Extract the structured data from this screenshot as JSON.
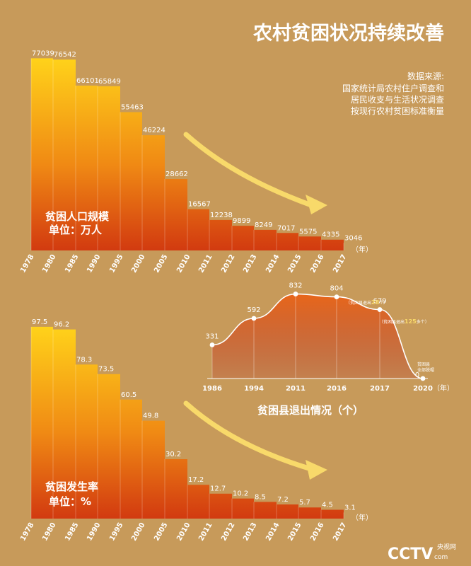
{
  "title": "农村贫困状况持续改善",
  "source": {
    "heading": "数据来源:",
    "lines": [
      "国家统计局农村住户调查和",
      "居民收支与生活状况调查",
      "按现行农村贫困标准衡量"
    ]
  },
  "colors": {
    "background": "#c79a5a",
    "top": "#ffd21a",
    "bottom": "#d23a10",
    "arrow": "#f8d96a"
  },
  "chart_data": [
    {
      "type": "area",
      "title": "贫困人口规模",
      "unit_label": "单位：万人",
      "axis_unit": "（年）",
      "categories": [
        "1978",
        "1980",
        "1985",
        "1990",
        "1995",
        "2000",
        "2005",
        "2010",
        "2011",
        "2012",
        "2013",
        "2014",
        "2015",
        "2016",
        "2017"
      ],
      "values": [
        77039,
        76542,
        66101,
        65849,
        55463,
        46224,
        28662,
        16567,
        12238,
        9899,
        8249,
        7017,
        5575,
        4335,
        3046
      ],
      "ylim": [
        0,
        80000
      ]
    },
    {
      "type": "area",
      "title": "贫困发生率",
      "unit_label": "单位：%",
      "axis_unit": "（年）",
      "categories": [
        "1978",
        "1980",
        "1985",
        "1990",
        "1995",
        "2000",
        "2005",
        "2010",
        "2011",
        "2012",
        "2013",
        "2014",
        "2015",
        "2016",
        "2017"
      ],
      "values": [
        97.5,
        96.2,
        78.3,
        73.5,
        60.5,
        49.8,
        30.2,
        17.2,
        12.7,
        10.2,
        8.5,
        7.2,
        5.7,
        4.5,
        3.1
      ],
      "ylim": [
        0,
        100
      ]
    },
    {
      "type": "line",
      "title": "贫困县退出情况（个）",
      "axis_unit": "（年）",
      "categories": [
        "1986",
        "1994",
        "2011",
        "2016",
        "2017",
        "2020"
      ],
      "values": [
        331,
        592,
        832,
        804,
        679,
        0
      ],
      "ylim": [
        0,
        850
      ],
      "annotations": [
        {
          "category": "2016",
          "prefix": "（贫困县退出",
          "value": "28",
          "suffix": "个）"
        },
        {
          "category": "2017",
          "prefix": "（贫困县退出",
          "value": "125",
          "suffix": "多个）"
        },
        {
          "category": "2020",
          "lines": [
            "贫困县",
            "全部脱帽"
          ]
        }
      ]
    }
  ],
  "logo": {
    "main": "CCTV",
    "sub": "com",
    "cn": "央视网"
  }
}
